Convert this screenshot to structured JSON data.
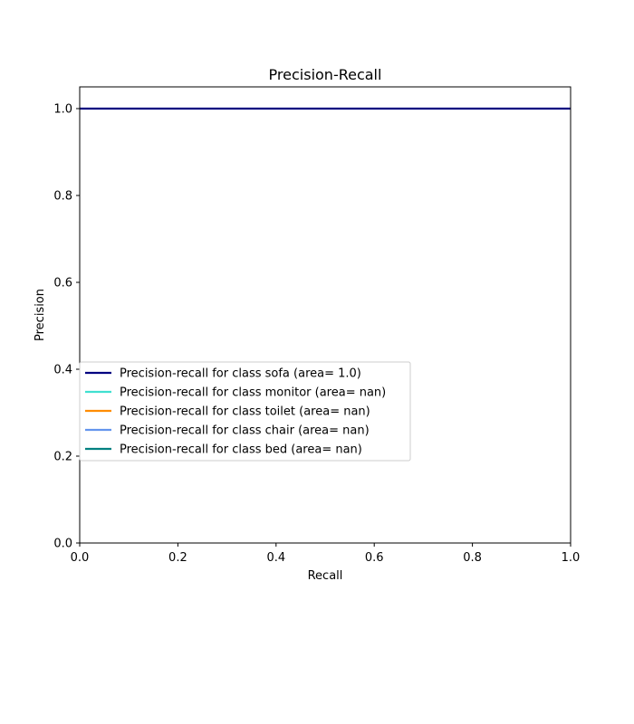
{
  "chart_data": {
    "type": "line",
    "title": "Precision-Recall",
    "xlabel": "Recall",
    "ylabel": "Precision",
    "xlim": [
      0.0,
      1.0
    ],
    "ylim": [
      0.0,
      1.05
    ],
    "xticks": [
      "0.0",
      "0.2",
      "0.4",
      "0.6",
      "0.8",
      "1.0"
    ],
    "yticks": [
      "0.0",
      "0.2",
      "0.4",
      "0.6",
      "0.8",
      "1.0"
    ],
    "grid": false,
    "legend_position": "center-left",
    "series": [
      {
        "name": "Precision-recall for class sofa (area= 1.0)",
        "color": "#000080",
        "x": [
          0.0,
          1.0
        ],
        "y": [
          1.0,
          1.0
        ]
      },
      {
        "name": "Precision-recall for class monitor (area= nan)",
        "color": "#40e0d0",
        "x": [],
        "y": []
      },
      {
        "name": "Precision-recall for class toilet (area= nan)",
        "color": "#ff8c00",
        "x": [],
        "y": []
      },
      {
        "name": "Precision-recall for class chair (area= nan)",
        "color": "#6495ed",
        "x": [],
        "y": []
      },
      {
        "name": "Precision-recall for class bed (area= nan)",
        "color": "#008080",
        "x": [],
        "y": []
      }
    ]
  }
}
